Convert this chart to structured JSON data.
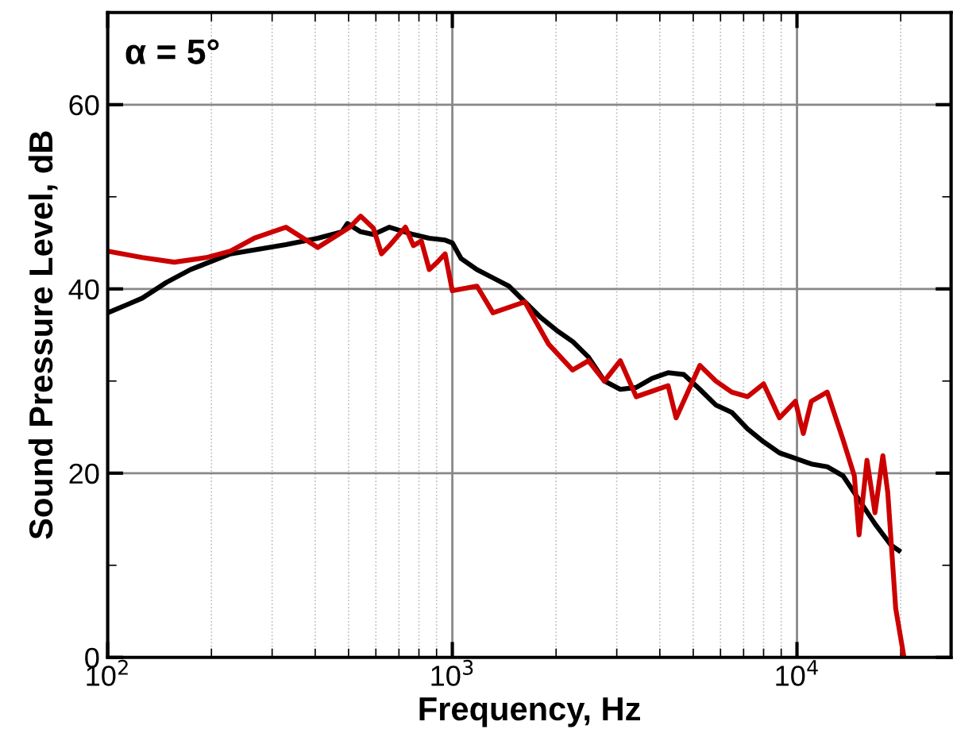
{
  "chart_data": {
    "type": "line",
    "xlabel": "Frequency, Hz",
    "ylabel": "Sound Pressure Level, dB",
    "annotations": [
      "α = 5°"
    ],
    "log": "x",
    "grid": true,
    "line_style": "solid",
    "marker": "none",
    "xlim": [
      100,
      28000
    ],
    "xticks": [
      {
        "value": 100,
        "label": "10$^{2}$"
      },
      {
        "value": 1000,
        "label": "10$^{3}$"
      },
      {
        "value": 10000,
        "label": "10$^{4}$"
      }
    ],
    "ylim": [
      0,
      70
    ],
    "yticks": [
      0,
      20,
      40,
      60
    ],
    "series": [
      {
        "color": "#000000",
        "x": [
          100,
          114,
          126,
          148,
          174,
          227,
          329,
          407,
          478,
          496,
          542,
          590,
          657,
          771,
          857,
          953,
          1000,
          1060,
          1179,
          1312,
          1459,
          1622,
          1804,
          2007,
          2233,
          2483,
          2762,
          3072,
          3416,
          3800,
          4226,
          4700,
          5227,
          5814,
          6466,
          7192,
          7999,
          8896,
          9894,
          11004,
          12238,
          13611,
          15139,
          16838,
          18727,
          19750
        ],
        "values": [
          37.4,
          38.3,
          39.0,
          40.7,
          42.1,
          43.8,
          44.8,
          45.5,
          46.2,
          47.1,
          46.2,
          45.9,
          46.7,
          45.9,
          45.5,
          45.3,
          45.0,
          43.3,
          42.1,
          41.2,
          40.3,
          38.6,
          36.9,
          35.5,
          34.3,
          32.6,
          30.0,
          29.1,
          29.3,
          30.3,
          30.9,
          30.7,
          29.1,
          27.4,
          26.6,
          24.8,
          23.4,
          22.2,
          21.6,
          21.0,
          20.7,
          19.7,
          17.1,
          14.5,
          12.2,
          11.6
        ]
      },
      {
        "color": "#cc0000",
        "x": [
          100,
          126,
          156,
          193,
          227,
          266,
          329,
          407,
          504,
          542,
          590,
          623,
          657,
          731,
          771,
          813,
          857,
          904,
          953,
          1000,
          1179,
          1312,
          1622,
          1903,
          2233,
          2483,
          2762,
          3072,
          3416,
          4226,
          4460,
          5227,
          5814,
          6466,
          7192,
          7999,
          8896,
          9894,
          10430,
          11004,
          12238,
          13611,
          14670,
          15139,
          15960,
          16838,
          17750,
          18340,
          19340,
          20400
        ],
        "values": [
          44.1,
          43.4,
          42.9,
          43.4,
          44.1,
          45.5,
          46.7,
          44.5,
          46.7,
          47.9,
          46.6,
          43.8,
          44.7,
          46.7,
          44.7,
          45.2,
          42.1,
          42.9,
          43.8,
          39.8,
          40.3,
          37.4,
          38.6,
          34.0,
          31.2,
          32.2,
          30.0,
          32.2,
          28.3,
          29.5,
          26.0,
          31.7,
          30.0,
          28.8,
          28.3,
          29.7,
          26.0,
          27.8,
          24.3,
          27.8,
          28.8,
          23.6,
          19.7,
          13.3,
          21.4,
          15.7,
          21.9,
          17.9,
          5.3,
          0.2
        ]
      }
    ]
  }
}
